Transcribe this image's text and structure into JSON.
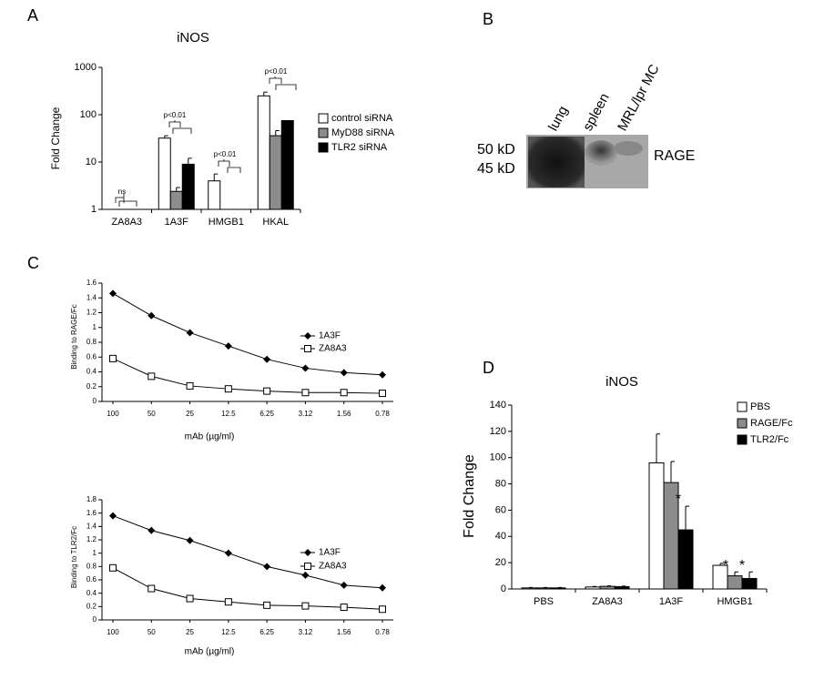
{
  "chart_data": [
    {
      "type": "bar",
      "panel": "A",
      "title": "iNOS",
      "ylabel": "Fold Change",
      "log_scale": true,
      "categories": [
        "ZA8A3",
        "1A3F",
        "HMGB1",
        "HKAL"
      ],
      "series": [
        {
          "name": "control siRNA",
          "color": "#ffffff",
          "values": [
            null,
            32,
            4,
            250
          ],
          "errors": [
            null,
            4,
            1.6,
            50
          ]
        },
        {
          "name": "MyD88 siRNA",
          "color": "#8c8c8c",
          "values": [
            null,
            2.4,
            null,
            36
          ],
          "errors": [
            null,
            0.5,
            null,
            10
          ]
        },
        {
          "name": "TLR2 siRNA",
          "color": "#000000",
          "values": [
            null,
            9,
            null,
            75
          ],
          "errors": [
            null,
            3,
            null,
            null
          ]
        }
      ],
      "ylim": [
        1,
        1000
      ],
      "yticks": [
        1,
        10,
        100,
        1000
      ],
      "annotations": [
        "ns",
        "p<0.01",
        "p<0.01",
        "p<0.01"
      ]
    },
    {
      "type": "line",
      "panel": "C",
      "ylabel": "Binding to RAGE/Fc",
      "xlabel": "mAb (µg/ml)",
      "categories": [
        "100",
        "50",
        "25",
        "12.5",
        "6.25",
        "3.12",
        "1.56",
        "0.78"
      ],
      "series": [
        {
          "name": "1A3F",
          "color": "#000000",
          "marker": "diamond",
          "values": [
            1.46,
            1.16,
            0.93,
            0.75,
            0.57,
            0.45,
            0.39,
            0.36
          ]
        },
        {
          "name": "ZA8A3",
          "color": "#000000",
          "marker": "square",
          "values": [
            0.58,
            0.34,
            0.21,
            0.17,
            0.14,
            0.12,
            0.12,
            0.11
          ]
        }
      ],
      "ylim": [
        0,
        1.6
      ],
      "yticks": [
        0,
        0.2,
        0.4,
        0.6,
        0.8,
        1,
        1.2,
        1.4,
        1.6
      ]
    },
    {
      "type": "line",
      "ylabel": "Binding to TLR2/Fc",
      "xlabel": "mAb (µg/ml)",
      "categories": [
        "100",
        "50",
        "25",
        "12.5",
        "6.25",
        "3.12",
        "1.56",
        "0.78"
      ],
      "series": [
        {
          "name": "1A3F",
          "color": "#000000",
          "marker": "diamond",
          "values": [
            1.56,
            1.34,
            1.19,
            1.0,
            0.8,
            0.67,
            0.52,
            0.48
          ]
        },
        {
          "name": "ZA8A3",
          "color": "#000000",
          "marker": "square",
          "values": [
            0.78,
            0.47,
            0.32,
            0.27,
            0.22,
            0.21,
            0.19,
            0.16
          ]
        }
      ],
      "ylim": [
        0,
        1.8
      ],
      "yticks": [
        0,
        0.2,
        0.4,
        0.6,
        0.8,
        1,
        1.2,
        1.4,
        1.6,
        1.8
      ]
    },
    {
      "type": "bar",
      "panel": "D",
      "title": "iNOS",
      "ylabel": "Fold Change",
      "categories": [
        "PBS",
        "ZA8A3",
        "1A3F",
        "HMGB1"
      ],
      "series": [
        {
          "name": "PBS",
          "color": "#ffffff",
          "values": [
            0.8,
            1.5,
            96,
            18
          ],
          "errors": [
            0.3,
            0.4,
            22,
            1.5
          ]
        },
        {
          "name": "RAGE/Fc",
          "color": "#8c8c8c",
          "values": [
            0.8,
            2,
            81,
            10
          ],
          "errors": [
            0.3,
            0.4,
            16,
            3
          ]
        },
        {
          "name": "TLR2/Fc",
          "color": "#000000",
          "values": [
            0.8,
            1.8,
            45,
            8
          ],
          "errors": [
            0.3,
            0.4,
            18,
            5
          ]
        }
      ],
      "ylim": [
        0,
        140
      ],
      "yticks": [
        0,
        20,
        40,
        60,
        80,
        100,
        120,
        140
      ],
      "annotations": [
        "*",
        "*",
        "*"
      ]
    }
  ],
  "blot": {
    "panel": "B",
    "lanes": [
      "lung",
      "spleen",
      "MRL/lpr MC"
    ],
    "markers": [
      "50 kD",
      "45 kD"
    ],
    "band_label": "RAGE"
  }
}
